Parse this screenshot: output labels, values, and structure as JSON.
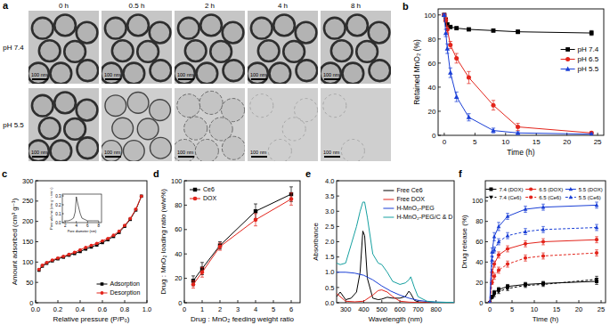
{
  "tem_panel": {
    "panel_label": "a",
    "columns": [
      "0 h",
      "0.5 h",
      "2 h",
      "4 h",
      "8 h"
    ],
    "rows": [
      "pH 7.4",
      "pH 5.5"
    ],
    "scale_bar": "100 nm"
  },
  "chart_data": [
    {
      "panel_label": "b",
      "type": "line",
      "x_label": "Time (h)",
      "y_label": "Retained MnO₂ (%)",
      "x": [
        0,
        0.25,
        0.5,
        1,
        2,
        4,
        8,
        12,
        24
      ],
      "xlim": [
        -1,
        26
      ],
      "xticks": [
        0,
        5,
        10,
        15,
        20,
        25
      ],
      "ylim": [
        0,
        105
      ],
      "yticks": [
        0,
        20,
        40,
        60,
        80,
        100
      ],
      "legend": "upper right",
      "series": [
        {
          "name": "pH 7.4",
          "color": "#000000",
          "marker": "square",
          "values": [
            100,
            96,
            92,
            90,
            89,
            88,
            87,
            86,
            85
          ],
          "errors": [
            1,
            1,
            1.5,
            1,
            1,
            1,
            1,
            1.5,
            2
          ]
        },
        {
          "name": "pH 6.5",
          "color": "#e3241b",
          "marker": "circle",
          "values": [
            100,
            96,
            88,
            75,
            64,
            48,
            25,
            7,
            2
          ],
          "errors": [
            1,
            2,
            3,
            3,
            4,
            5,
            4,
            3,
            1
          ]
        },
        {
          "name": "pH 5.5",
          "color": "#1a3fd6",
          "marker": "triangle",
          "values": [
            100,
            85,
            72,
            52,
            32,
            15,
            4,
            2,
            1
          ],
          "errors": [
            1,
            3,
            4,
            4,
            4,
            3,
            2,
            1,
            1
          ]
        }
      ]
    },
    {
      "panel_label": "c",
      "type": "line",
      "x_label": "Relative pressure (P/P₀)",
      "y_label": "Amount adsorbed (cm³ g⁻¹)",
      "x": [
        0.03,
        0.06,
        0.1,
        0.15,
        0.2,
        0.25,
        0.3,
        0.35,
        0.4,
        0.45,
        0.5,
        0.55,
        0.6,
        0.65,
        0.7,
        0.75,
        0.8,
        0.85,
        0.9,
        0.95
      ],
      "xlim": [
        0,
        1
      ],
      "xticks": [
        {
          "value": 0,
          "label": "0.0"
        },
        0.2,
        0.4,
        0.6,
        0.8,
        {
          "value": 1,
          "label": "1.0"
        }
      ],
      "ylim": [
        0,
        300
      ],
      "yticks": [
        0,
        50,
        100,
        150,
        200,
        250,
        300
      ],
      "legend": "lower right",
      "series": [
        {
          "name": "Adsorption",
          "color": "#000000",
          "marker": "square",
          "values": [
            80,
            90,
            97,
            103,
            108,
            112,
            117,
            121,
            126,
            132,
            137,
            142,
            148,
            155,
            163,
            173,
            188,
            205,
            228,
            262
          ]
        },
        {
          "name": "Desorption",
          "color": "#e3241b",
          "marker": "circle",
          "values": [
            82,
            92,
            99,
            105,
            110,
            114,
            119,
            124,
            130,
            136,
            141,
            146,
            152,
            158,
            166,
            176,
            190,
            207,
            230,
            262
          ]
        }
      ]
    },
    {
      "type": "line",
      "x_label": "Pore diameter (nm)",
      "y_label": "Pore volume (cm³ g⁻¹ nm⁻¹)",
      "x": [
        1.8,
        2.5,
        3,
        3.5,
        3.8,
        4.0,
        4.3,
        4.7,
        5,
        6,
        7,
        8
      ],
      "xlim": [
        1.5,
        8.5
      ],
      "xticks": [
        2,
        4,
        6,
        8
      ],
      "ylim": [
        0,
        0.32
      ],
      "yticks": [
        {
          "value": 0,
          "label": "0.0"
        },
        0.1,
        0.2,
        0.3
      ],
      "series": [
        {
          "color": "#000000",
          "marker": "none",
          "line_style": "solid",
          "values": [
            0.02,
            0.02,
            0.03,
            0.05,
            0.12,
            0.29,
            0.2,
            0.1,
            0.05,
            0.02,
            0.02,
            0.02
          ]
        }
      ]
    },
    {
      "panel_label": "d",
      "type": "line",
      "x_label": "Drug : MnO₂ feeding weight ratio",
      "y_label": "Drug : MnO₂ loading ratio (w/w%)",
      "x": [
        0.5,
        1,
        2,
        4,
        6
      ],
      "xlim": [
        0,
        6.5
      ],
      "xticks": [
        0,
        1,
        2,
        3,
        4,
        5,
        6
      ],
      "ylim": [
        0,
        100
      ],
      "yticks": [
        0,
        20,
        40,
        60,
        80,
        100
      ],
      "legend": "upper left",
      "series": [
        {
          "name": "Ce6",
          "color": "#000000",
          "marker": "square",
          "values": [
            18,
            28,
            47,
            75,
            89
          ],
          "errors": [
            4,
            5,
            3,
            6,
            6
          ]
        },
        {
          "name": "DOX",
          "color": "#e3241b",
          "marker": "circle",
          "values": [
            15,
            25,
            46,
            68,
            85
          ],
          "errors": [
            3,
            4,
            3,
            5,
            5
          ]
        }
      ]
    },
    {
      "panel_label": "e",
      "type": "line",
      "x_label": "Wavelength (nm)",
      "y_label": "Absorbance",
      "xlim": [
        250,
        900
      ],
      "xticks": [
        300,
        400,
        500,
        600,
        700,
        800
      ],
      "ylim": [
        0,
        4
      ],
      "yticks": [
        {
          "value": 0,
          "label": "0.0"
        },
        0.5,
        {
          "value": 1,
          "label": "1.0"
        },
        1.5,
        {
          "value": 2,
          "label": "2.0"
        },
        2.5,
        {
          "value": 3,
          "label": "3.0"
        },
        3.5,
        {
          "value": 4,
          "label": "4.0"
        }
      ],
      "legend": "upper right",
      "series": [
        {
          "name": "Free Ce6",
          "color": "#000000",
          "marker": "none",
          "x": [
            250,
            270,
            300,
            330,
            360,
            380,
            395,
            405,
            420,
            450,
            480,
            500,
            530,
            560,
            600,
            630,
            650,
            660,
            680,
            700,
            750,
            800,
            900
          ],
          "values": [
            0.2,
            0.35,
            0.1,
            0.15,
            0.35,
            1.0,
            2.35,
            2.2,
            0.8,
            0.15,
            0.1,
            0.12,
            0.18,
            0.15,
            0.15,
            0.2,
            0.38,
            0.3,
            0.08,
            0.03,
            0.01,
            0,
            0
          ]
        },
        {
          "name": "Free DOX",
          "color": "#e3241b",
          "marker": "none",
          "x": [
            250,
            300,
            350,
            400,
            450,
            480,
            500,
            530,
            560,
            600,
            650,
            700,
            800,
            900
          ],
          "values": [
            0.3,
            0.05,
            0.03,
            0.05,
            0.25,
            0.4,
            0.42,
            0.35,
            0.2,
            0.05,
            0.02,
            0.01,
            0,
            0
          ]
        },
        {
          "name": "H-MnO₂-PEG",
          "color": "#1a3fd6",
          "marker": "none",
          "x": [
            250,
            300,
            350,
            400,
            450,
            500,
            550,
            600,
            650,
            700,
            750,
            800,
            900
          ],
          "values": [
            1.0,
            1.0,
            0.97,
            0.9,
            0.75,
            0.55,
            0.38,
            0.25,
            0.15,
            0.08,
            0.04,
            0.02,
            0.01
          ]
        },
        {
          "name": "H-MnO₂-PEG/C & D",
          "color": "#16a0a0",
          "marker": "none",
          "x": [
            250,
            270,
            300,
            330,
            360,
            380,
            395,
            405,
            420,
            450,
            480,
            500,
            530,
            560,
            600,
            630,
            650,
            660,
            680,
            700,
            750,
            800,
            900
          ],
          "values": [
            1.3,
            1.25,
            1.3,
            1.9,
            2.5,
            3.0,
            3.3,
            3.3,
            2.8,
            1.6,
            1.3,
            1.25,
            1.0,
            0.7,
            0.6,
            0.65,
            0.75,
            0.85,
            0.5,
            0.2,
            0.05,
            0.02,
            0.01
          ]
        }
      ]
    },
    {
      "panel_label": "f",
      "type": "line",
      "x_label": "Time (h)",
      "y_label": "Drug release (%)",
      "x": [
        0,
        0.5,
        1,
        2,
        4,
        8,
        12,
        24
      ],
      "xlim": [
        -1,
        26
      ],
      "xticks": [
        0,
        5,
        10,
        15,
        20,
        25
      ],
      "ylim": [
        0,
        120
      ],
      "yticks": [
        0,
        20,
        40,
        60,
        80,
        100
      ],
      "legend": "upper center",
      "series": [
        {
          "name": "7.4 (DOX)",
          "color": "#000000",
          "marker": "square",
          "line_style": "solid",
          "values": [
            0,
            6,
            10,
            13,
            16,
            18,
            19,
            21
          ],
          "errors": [
            0,
            1,
            2,
            2,
            2,
            2,
            2,
            3
          ]
        },
        {
          "name": "7.4 (Ce6)",
          "color": "#000000",
          "marker": "triangle-down",
          "line_style": "dashed",
          "values": [
            0,
            5,
            8,
            11,
            14,
            17,
            18,
            23
          ],
          "errors": [
            0,
            1,
            2,
            2,
            2,
            2,
            2,
            3
          ]
        },
        {
          "name": "6.5 (DOX)",
          "color": "#e3241b",
          "marker": "circle",
          "line_style": "solid",
          "values": [
            0,
            30,
            38,
            47,
            53,
            58,
            60,
            62
          ],
          "errors": [
            0,
            3,
            3,
            3,
            3,
            3,
            3,
            3
          ]
        },
        {
          "name": "6.5 (Ce6)",
          "color": "#e3241b",
          "marker": "circle",
          "line_style": "dashed",
          "values": [
            0,
            20,
            26,
            32,
            38,
            44,
            46,
            49
          ],
          "errors": [
            0,
            2,
            3,
            3,
            3,
            3,
            3,
            3
          ]
        },
        {
          "name": "5.5 (DOX)",
          "color": "#1a3fd6",
          "marker": "triangle",
          "line_style": "solid",
          "values": [
            0,
            50,
            65,
            75,
            85,
            92,
            94,
            96
          ],
          "errors": [
            0,
            4,
            4,
            4,
            3,
            3,
            3,
            3
          ]
        },
        {
          "name": "5.5 (Ce6)",
          "color": "#1a3fd6",
          "marker": "triangle",
          "line_style": "dashed",
          "values": [
            0,
            42,
            52,
            60,
            66,
            70,
            72,
            74
          ],
          "errors": [
            0,
            3,
            3,
            3,
            3,
            3,
            3,
            3
          ]
        }
      ]
    }
  ]
}
